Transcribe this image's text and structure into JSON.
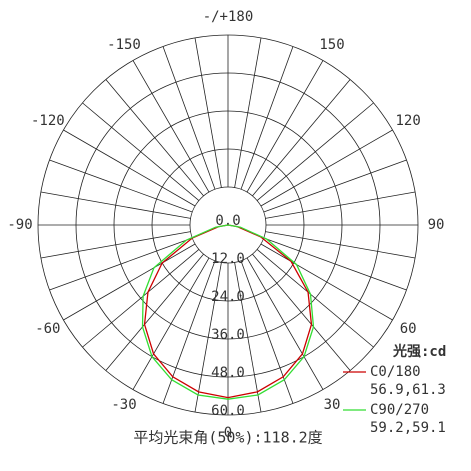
{
  "chart_data": {
    "type": "polar",
    "title": "平均光束角(50%):118.2度",
    "legend_title": "光强:cd",
    "x": [
      -90,
      -80,
      -70,
      -60,
      -50,
      -40,
      -30,
      -20,
      -10,
      0,
      10,
      20,
      30,
      40,
      50,
      60,
      70,
      80,
      90
    ],
    "rlim": [
      0,
      60
    ],
    "rticks": [
      {
        "value": 0,
        "label": "0.0"
      },
      {
        "value": 12,
        "label": "12.0"
      },
      {
        "value": 24,
        "label": "24.0"
      },
      {
        "value": 36,
        "label": "36.0"
      },
      {
        "value": 48,
        "label": "48.0"
      },
      {
        "value": 60,
        "label": "60.0"
      }
    ],
    "xticks": [
      0,
      30,
      60,
      90,
      120,
      150,
      {
        "value": 180,
        "label": "-/+180"
      },
      -150,
      -120,
      -90,
      -60,
      -30
    ],
    "series": [
      {
        "name": "C0/180",
        "stats": "56.9,61.3",
        "color": "#cc0000",
        "values": [
          0,
          3,
          12,
          24,
          33,
          41,
          47,
          51,
          53.5,
          54.5,
          53.5,
          51,
          47,
          41,
          33,
          23,
          11,
          3,
          0
        ]
      },
      {
        "name": "C90/270",
        "stats": "59.2,59.1",
        "color": "#33dd33",
        "values": [
          0,
          4,
          14,
          27,
          35,
          42,
          48,
          52,
          54.5,
          55,
          54.5,
          52,
          48,
          42,
          34,
          25,
          13,
          4,
          0
        ]
      }
    ]
  }
}
